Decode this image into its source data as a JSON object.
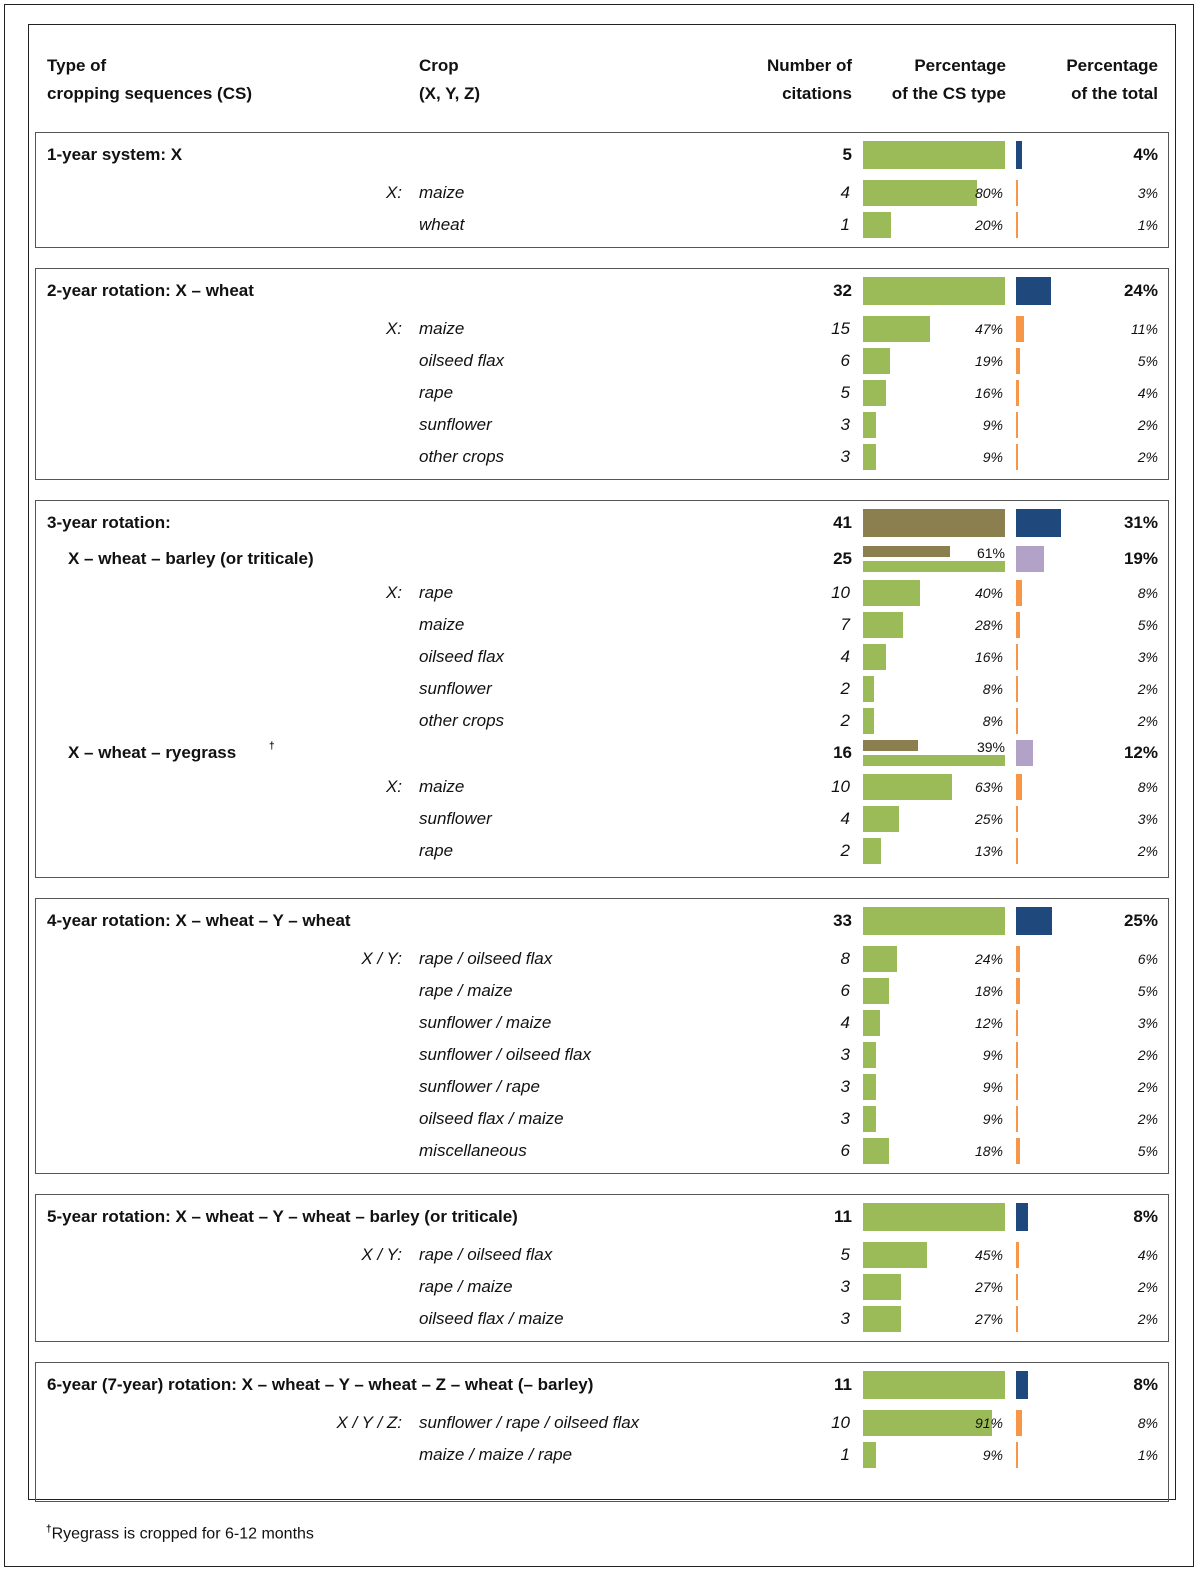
{
  "header": {
    "type_line1": "Type of",
    "type_line2": "cropping sequences (CS)",
    "crop_line1": "Crop",
    "crop_line2": "(X, Y, Z)",
    "num_line1": "Number of",
    "num_line2": "citations",
    "pcs_line1": "Percentage",
    "pcs_line2": "of the CS type",
    "ptot_line1": "Percentage",
    "ptot_line2": "of the total"
  },
  "footnote": {
    "mark": "†",
    "text": "Ryegrass is cropped for 6-12 months"
  },
  "colors": {
    "crop_bar": "#9bbb59",
    "main_bar": "#8b7f50",
    "total_bar": "#1f497d",
    "subtotal_bar": "#b3a2c7",
    "crop_total_bar": "#f79646"
  },
  "chart_data": {
    "type": "table",
    "sections": [
      {
        "title": "1-year system: X",
        "count": 5,
        "total_pct": "4%",
        "total_value": 4,
        "groups": [
          {
            "prefix": "X:",
            "rows": [
              {
                "crop": "maize",
                "count": 4,
                "pct": "80%",
                "pct_value": 80,
                "total_pct": "3%",
                "total_value": 3
              },
              {
                "crop": "wheat",
                "count": 1,
                "pct": "20%",
                "pct_value": 20,
                "total_pct": "1%",
                "total_value": 1
              }
            ]
          }
        ]
      },
      {
        "title": "2-year rotation: X – wheat",
        "count": 32,
        "total_pct": "24%",
        "total_value": 24,
        "groups": [
          {
            "prefix": "X:",
            "rows": [
              {
                "crop": "maize",
                "count": 15,
                "pct": "47%",
                "pct_value": 47,
                "total_pct": "11%",
                "total_value": 11
              },
              {
                "crop": "oilseed flax",
                "count": 6,
                "pct": "19%",
                "pct_value": 19,
                "total_pct": "5%",
                "total_value": 5
              },
              {
                "crop": "rape",
                "count": 5,
                "pct": "16%",
                "pct_value": 16,
                "total_pct": "4%",
                "total_value": 4
              },
              {
                "crop": "sunflower",
                "count": 3,
                "pct": "9%",
                "pct_value": 9,
                "total_pct": "2%",
                "total_value": 2
              },
              {
                "crop": "other crops",
                "count": 3,
                "pct": "9%",
                "pct_value": 9,
                "total_pct": "2%",
                "total_value": 2
              }
            ]
          }
        ]
      },
      {
        "title": "3-year rotation:",
        "count": 41,
        "total_pct": "31%",
        "total_value": 31,
        "main_color": true,
        "groups": [
          {
            "subtitle": "X – wheat – barley (or triticale)",
            "sub_count": 25,
            "sub_pct": "61%",
            "sub_pct_value": 61,
            "sub_total_pct": "19%",
            "sub_total_value": 19,
            "prefix": "X:",
            "rows": [
              {
                "crop": "rape",
                "count": 10,
                "pct": "40%",
                "pct_value": 40,
                "total_pct": "8%",
                "total_value": 8
              },
              {
                "crop": "maize",
                "count": 7,
                "pct": "28%",
                "pct_value": 28,
                "total_pct": "5%",
                "total_value": 5
              },
              {
                "crop": "oilseed flax",
                "count": 4,
                "pct": "16%",
                "pct_value": 16,
                "total_pct": "3%",
                "total_value": 3
              },
              {
                "crop": "sunflower",
                "count": 2,
                "pct": "8%",
                "pct_value": 8,
                "total_pct": "2%",
                "total_value": 2
              },
              {
                "crop": "other crops",
                "count": 2,
                "pct": "8%",
                "pct_value": 8,
                "total_pct": "2%",
                "total_value": 2
              }
            ]
          },
          {
            "subtitle": "X – wheat – ryegrass",
            "subtitle_mark": "†",
            "sub_count": 16,
            "sub_pct": "39%",
            "sub_pct_value": 39,
            "sub_total_pct": "12%",
            "sub_total_value": 12,
            "prefix": "X:",
            "rows": [
              {
                "crop": "maize",
                "count": 10,
                "pct": "63%",
                "pct_value": 63,
                "total_pct": "8%",
                "total_value": 8
              },
              {
                "crop": "sunflower",
                "count": 4,
                "pct": "25%",
                "pct_value": 25,
                "total_pct": "3%",
                "total_value": 3
              },
              {
                "crop": "rape",
                "count": 2,
                "pct": "13%",
                "pct_value": 13,
                "total_pct": "2%",
                "total_value": 2
              }
            ]
          }
        ]
      },
      {
        "title": "4-year rotation: X – wheat – Y – wheat",
        "count": 33,
        "total_pct": "25%",
        "total_value": 25,
        "groups": [
          {
            "prefix": "X / Y:",
            "rows": [
              {
                "crop": "rape / oilseed flax",
                "count": 8,
                "pct": "24%",
                "pct_value": 24,
                "total_pct": "6%",
                "total_value": 6
              },
              {
                "crop": "rape / maize",
                "count": 6,
                "pct": "18%",
                "pct_value": 18,
                "total_pct": "5%",
                "total_value": 5
              },
              {
                "crop": "sunflower / maize",
                "count": 4,
                "pct": "12%",
                "pct_value": 12,
                "total_pct": "3%",
                "total_value": 3
              },
              {
                "crop": "sunflower / oilseed flax",
                "count": 3,
                "pct": "9%",
                "pct_value": 9,
                "total_pct": "2%",
                "total_value": 2
              },
              {
                "crop": "sunflower / rape",
                "count": 3,
                "pct": "9%",
                "pct_value": 9,
                "total_pct": "2%",
                "total_value": 2
              },
              {
                "crop": "oilseed flax / maize",
                "count": 3,
                "pct": "9%",
                "pct_value": 9,
                "total_pct": "2%",
                "total_value": 2
              },
              {
                "crop": "miscellaneous",
                "count": 6,
                "pct": "18%",
                "pct_value": 18,
                "total_pct": "5%",
                "total_value": 5
              }
            ]
          }
        ]
      },
      {
        "title": "5-year rotation: X – wheat – Y – wheat – barley (or triticale)",
        "count": 11,
        "total_pct": "8%",
        "total_value": 8,
        "groups": [
          {
            "prefix": "X / Y:",
            "rows": [
              {
                "crop": "rape / oilseed flax",
                "count": 5,
                "pct": "45%",
                "pct_value": 45,
                "total_pct": "4%",
                "total_value": 4
              },
              {
                "crop": "rape / maize",
                "count": 3,
                "pct": "27%",
                "pct_value": 27,
                "total_pct": "2%",
                "total_value": 2
              },
              {
                "crop": "oilseed flax / maize",
                "count": 3,
                "pct": "27%",
                "pct_value": 27,
                "total_pct": "2%",
                "total_value": 2
              }
            ]
          }
        ]
      },
      {
        "title": "6-year (7-year) rotation: X – wheat – Y – wheat – Z – wheat (– barley)",
        "count": 11,
        "total_pct": "8%",
        "total_value": 8,
        "groups": [
          {
            "prefix": "X / Y / Z:",
            "rows": [
              {
                "crop": "sunflower / rape / oilseed flax",
                "count": 10,
                "pct": "91%",
                "pct_value": 91,
                "total_pct": "8%",
                "total_value": 8
              },
              {
                "crop": "maize / maize / rape",
                "count": 1,
                "pct": "9%",
                "pct_value": 9,
                "total_pct": "1%",
                "total_value": 1
              }
            ]
          }
        ]
      }
    ]
  }
}
